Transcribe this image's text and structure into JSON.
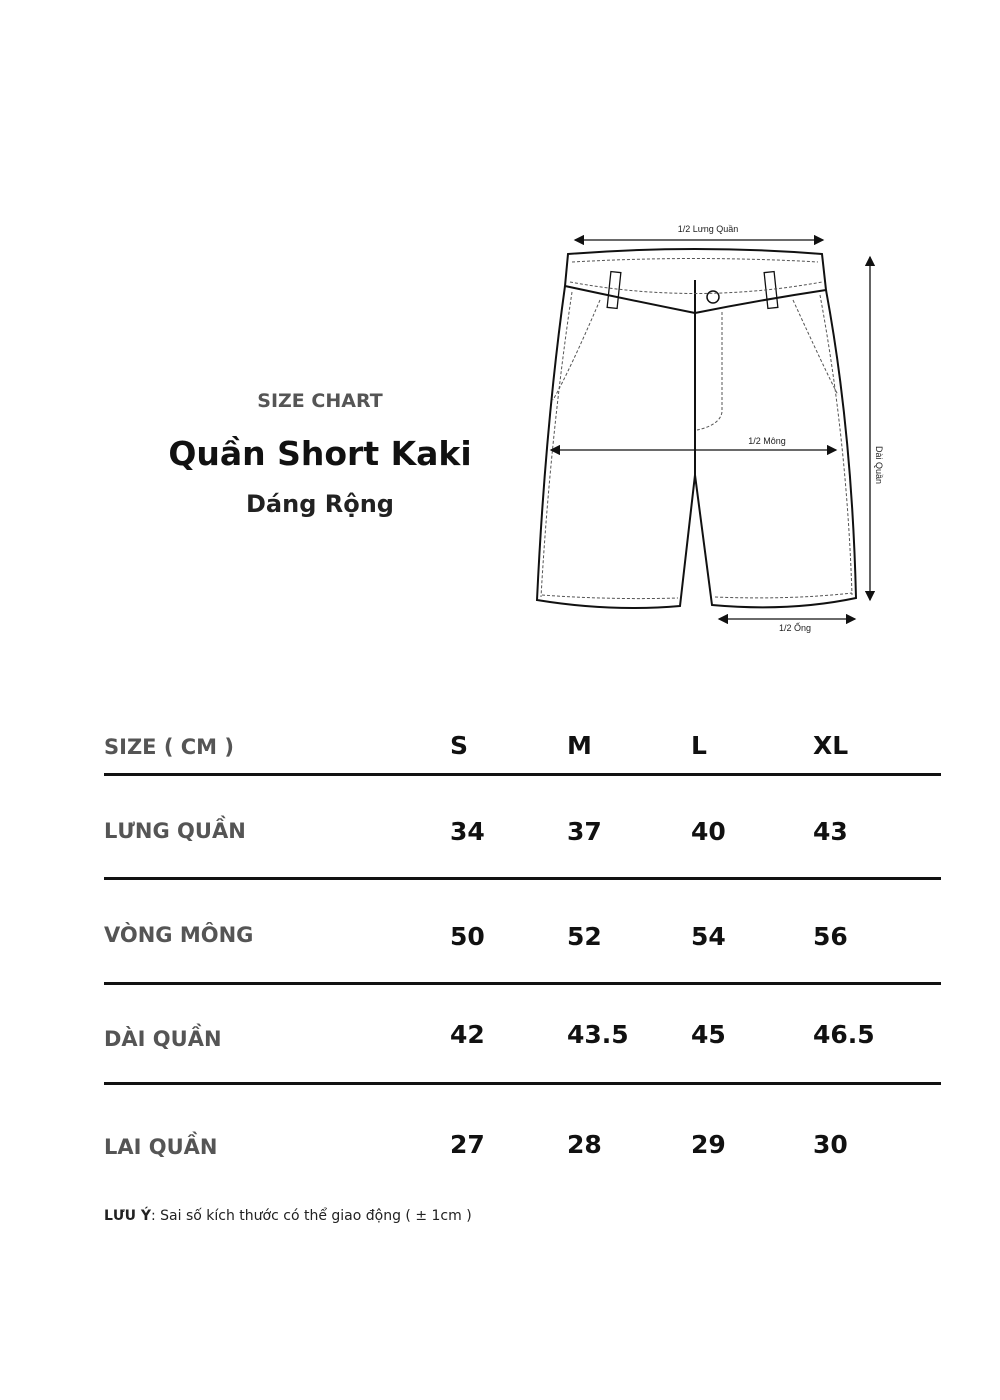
{
  "header": {
    "eyebrow": "SIZE CHART",
    "title": "Quần Short Kaki",
    "subtitle": "Dáng Rộng"
  },
  "diagram": {
    "waist_label": "1/2 Lưng Quần",
    "hip_label": "1/2 Mông",
    "length_label": "Dài Quần",
    "leg_label": "1/2 Ống"
  },
  "table": {
    "header_label": "SIZE ( CM )",
    "sizes": [
      "S",
      "M",
      "L",
      "XL"
    ],
    "rows": [
      {
        "label": "LƯNG QUẦN",
        "values": [
          "34",
          "37",
          "40",
          "43"
        ]
      },
      {
        "label": "VÒNG MÔNG",
        "values": [
          "50",
          "52",
          "54",
          "56"
        ]
      },
      {
        "label": "DÀI QUẦN",
        "values": [
          "42",
          "43.5",
          "45",
          "46.5"
        ]
      },
      {
        "label": "LAI QUẦN",
        "values": [
          "27",
          "28",
          "29",
          "30"
        ]
      }
    ]
  },
  "note": {
    "label": "LƯU Ý",
    "text": ": Sai số kích thước có thể giao động ( ± 1cm )"
  }
}
